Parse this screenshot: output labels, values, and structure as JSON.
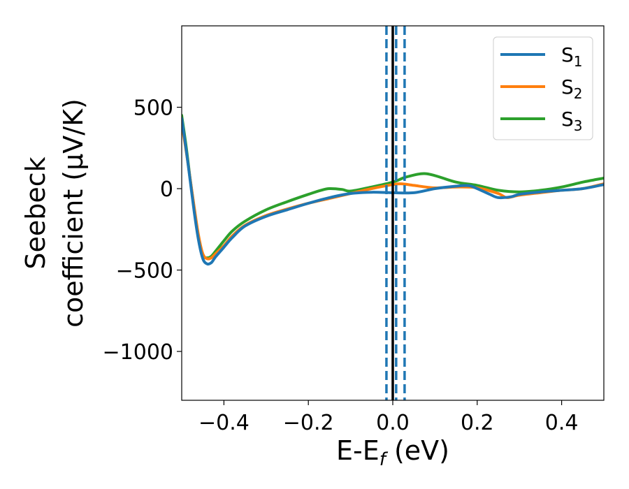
{
  "chart_data": {
    "type": "line",
    "xlabel": "E-E",
    "xlabel_sub": "f",
    "xlabel_unit": " (eV)",
    "ylabel_line1": "Seebeck",
    "ylabel_line2": "coefficient  (μV/K)",
    "xlim": [
      -0.5,
      0.5
    ],
    "ylim": [
      -1300,
      1000
    ],
    "xticks": [
      -0.4,
      -0.2,
      0.0,
      0.2,
      0.4
    ],
    "xtick_labels": [
      "−0.4",
      "−0.2",
      "0.0",
      "0.2",
      "0.4"
    ],
    "yticks": [
      500,
      0,
      -500,
      -1000
    ],
    "ytick_labels": [
      "500",
      "0",
      "−500",
      "−1000"
    ],
    "grid": false,
    "legend_position": "top-right",
    "vlines": [
      {
        "x": -0.015,
        "style": "dashed",
        "color": "#1f77b4"
      },
      {
        "x": 0.008,
        "style": "dashed",
        "color": "#1f77b4"
      },
      {
        "x": 0.028,
        "style": "dashed",
        "color": "#1f77b4"
      },
      {
        "x": 0.0,
        "style": "solid",
        "color": "#000000"
      }
    ],
    "series": [
      {
        "name": "S",
        "sub": "1",
        "color": "#1f77b4",
        "x": [
          -0.5,
          -0.49,
          -0.48,
          -0.47,
          -0.46,
          -0.45,
          -0.44,
          -0.43,
          -0.42,
          -0.4,
          -0.38,
          -0.35,
          -0.3,
          -0.25,
          -0.2,
          -0.15,
          -0.1,
          -0.05,
          0.0,
          0.05,
          0.1,
          0.15,
          0.18,
          0.2,
          0.23,
          0.25,
          0.28,
          0.3,
          0.35,
          0.4,
          0.45,
          0.5
        ],
        "y": [
          430,
          250,
          50,
          -150,
          -320,
          -430,
          -462,
          -455,
          -420,
          -360,
          -300,
          -230,
          -170,
          -130,
          -90,
          -55,
          -30,
          -22,
          -25,
          -25,
          0,
          15,
          18,
          0,
          -35,
          -55,
          -50,
          -35,
          -20,
          -10,
          0,
          25
        ]
      },
      {
        "name": "S",
        "sub": "2",
        "color": "#ff7f0e",
        "x": [
          -0.5,
          -0.49,
          -0.48,
          -0.47,
          -0.46,
          -0.45,
          -0.44,
          -0.43,
          -0.42,
          -0.4,
          -0.38,
          -0.35,
          -0.3,
          -0.25,
          -0.2,
          -0.15,
          -0.1,
          -0.05,
          0.0,
          0.02,
          0.05,
          0.1,
          0.15,
          0.2,
          0.25,
          0.27,
          0.3,
          0.35,
          0.4,
          0.45,
          0.5
        ],
        "y": [
          400,
          240,
          60,
          -120,
          -290,
          -400,
          -430,
          -425,
          -400,
          -350,
          -290,
          -225,
          -165,
          -125,
          -90,
          -60,
          -30,
          0,
          25,
          30,
          20,
          5,
          10,
          5,
          -30,
          -55,
          -40,
          -25,
          -10,
          0,
          30
        ]
      },
      {
        "name": "S",
        "sub": "3",
        "color": "#2ca02c",
        "x": [
          -0.5,
          -0.49,
          -0.48,
          -0.47,
          -0.46,
          -0.45,
          -0.44,
          -0.43,
          -0.42,
          -0.4,
          -0.38,
          -0.35,
          -0.3,
          -0.25,
          -0.2,
          -0.17,
          -0.15,
          -0.12,
          -0.1,
          -0.05,
          0.0,
          0.03,
          0.07,
          0.1,
          0.15,
          0.2,
          0.25,
          0.3,
          0.35,
          0.4,
          0.45,
          0.5
        ],
        "y": [
          450,
          270,
          60,
          -130,
          -300,
          -410,
          -425,
          -415,
          -385,
          -320,
          -260,
          -200,
          -130,
          -80,
          -35,
          -10,
          0,
          -5,
          -15,
          10,
          40,
          70,
          92,
          80,
          40,
          20,
          -10,
          -20,
          -10,
          10,
          40,
          65
        ]
      }
    ]
  }
}
